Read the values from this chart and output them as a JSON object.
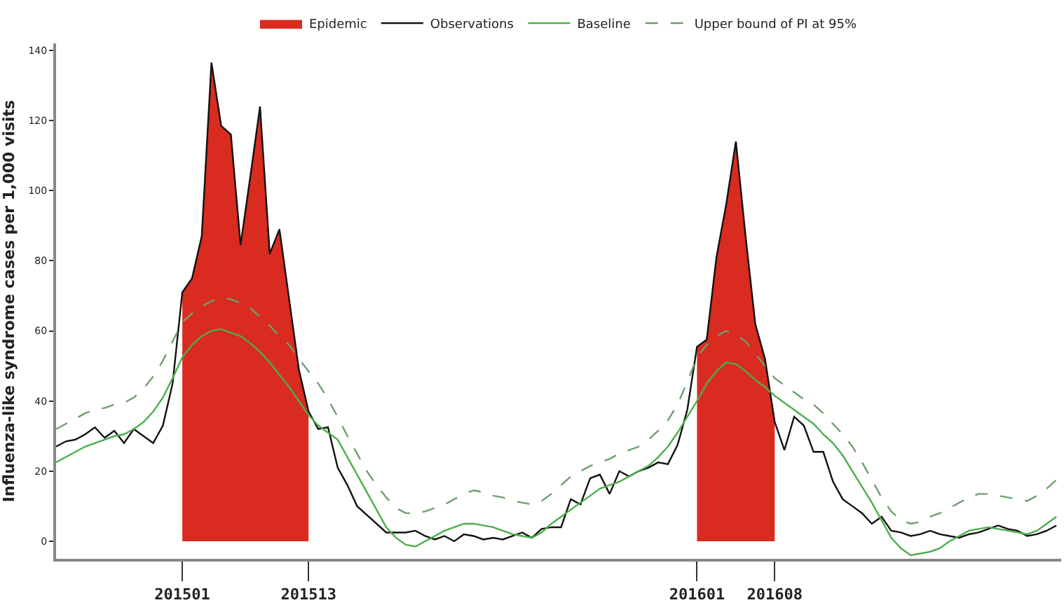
{
  "chart_data": {
    "type": "line",
    "ylabel": "Influenza-like syndrome cases per 1,000 visits",
    "categories": [
      null,
      null,
      null,
      null,
      null,
      null,
      null,
      null,
      null,
      null,
      null,
      null,
      null,
      "201501",
      null,
      null,
      null,
      null,
      null,
      null,
      null,
      null,
      null,
      null,
      null,
      null,
      "201513",
      null,
      null,
      null,
      null,
      null,
      null,
      null,
      null,
      null,
      null,
      null,
      null,
      null,
      null,
      null,
      null,
      null,
      null,
      null,
      null,
      null,
      null,
      null,
      null,
      null,
      null,
      null,
      null,
      null,
      null,
      null,
      null,
      null,
      null,
      null,
      null,
      null,
      null,
      null,
      "201601",
      null,
      null,
      null,
      null,
      null,
      null,
      null,
      "201608",
      null,
      null,
      null,
      null,
      null,
      null,
      null,
      null,
      null,
      null,
      null,
      null,
      null,
      null,
      null,
      null,
      null,
      null,
      null,
      null,
      null,
      null,
      null,
      null,
      null,
      null,
      null,
      null,
      null
    ],
    "ylim": [
      -5,
      142
    ],
    "yticks": [
      0,
      20,
      40,
      60,
      80,
      100,
      120,
      140
    ],
    "grid": false,
    "legend": "top",
    "marker": "none",
    "series": [
      {
        "name": "Observations",
        "color": "#111111",
        "line_style": "solid",
        "values": [
          27,
          28.5,
          29,
          30.5,
          32.5,
          29.5,
          31.5,
          28,
          32,
          30,
          28,
          33,
          45,
          71,
          75,
          87,
          136.5,
          118.5,
          116,
          84.5,
          104,
          124,
          82,
          89,
          69,
          49,
          37,
          32,
          32.5,
          21,
          16,
          10,
          7.5,
          5,
          2.5,
          2.5,
          2.5,
          3,
          1.5,
          0.5,
          1.5,
          0,
          2,
          1.5,
          0.5,
          1,
          0.5,
          1.5,
          2.5,
          1,
          3.5,
          4,
          4,
          12,
          10.5,
          18,
          19,
          13.5,
          20,
          18.5,
          20,
          21,
          22.5,
          22,
          27.5,
          37.5,
          55.5,
          57.5,
          81,
          96,
          114,
          87,
          62,
          52,
          34,
          26,
          35.5,
          33,
          25.5,
          25.5,
          17,
          12,
          10,
          8,
          5,
          7,
          3,
          2.5,
          1.5,
          2,
          3,
          2,
          1.5,
          1,
          2,
          2.5,
          3.5,
          4.5,
          3.5,
          3,
          1.5,
          2,
          3,
          4.5
        ]
      },
      {
        "name": "Baseline",
        "type": "line",
        "color": "#4cae4c",
        "line_style": "solid",
        "values": [
          22.5,
          24,
          25.5,
          27,
          28,
          29,
          30,
          30.5,
          32,
          34,
          37,
          41,
          46.5,
          52.5,
          56,
          58.5,
          60,
          60.5,
          59.5,
          58.5,
          56.5,
          54,
          51,
          47.5,
          44,
          40,
          36,
          33,
          31,
          29,
          24,
          19,
          14,
          9,
          4,
          1,
          -1,
          -1.5,
          0,
          1.5,
          3,
          4,
          5,
          5,
          4.5,
          4,
          3,
          2,
          1.5,
          1,
          2.5,
          5,
          7,
          9,
          11,
          13,
          15,
          16,
          17,
          18.5,
          20,
          21.5,
          24,
          27,
          31,
          35.5,
          40,
          45,
          48.5,
          51,
          50.5,
          48.5,
          46,
          44,
          41.5,
          39.5,
          37.5,
          35.5,
          33.5,
          30.5,
          28,
          24.5,
          20,
          15.5,
          11,
          6,
          1,
          -2,
          -4,
          -3.5,
          -3,
          -2,
          0,
          1.5,
          3,
          3.5,
          4,
          3.5,
          3,
          2.5,
          2,
          3,
          5,
          7
        ]
      },
      {
        "name": "Upper bound of PI at 95%",
        "type": "line",
        "color": "#6f9f6f",
        "line_style": "dashed",
        "values": [
          32,
          33.5,
          35,
          36.5,
          37.5,
          38,
          39,
          39.5,
          41,
          43.5,
          47,
          51.5,
          57,
          62.5,
          65,
          67,
          68.5,
          69.5,
          69,
          68,
          66.5,
          64,
          61.5,
          58.5,
          56,
          52,
          48.5,
          45,
          40.5,
          35.5,
          30,
          25,
          20,
          16,
          12.5,
          9.5,
          8,
          8,
          8.5,
          9.5,
          10.5,
          12,
          13.5,
          14.5,
          14,
          13,
          12.5,
          11.5,
          11,
          10.5,
          11.5,
          13.5,
          16,
          18.5,
          20,
          21.5,
          22.5,
          23.5,
          25,
          26,
          27,
          29,
          31.5,
          34.5,
          39,
          45.5,
          52.5,
          56,
          58.5,
          60,
          59,
          57,
          53.5,
          50,
          46.5,
          44.5,
          42.5,
          40.5,
          39,
          36.5,
          33.5,
          30.5,
          27,
          22.5,
          17.5,
          12.5,
          8.5,
          6,
          5,
          5.5,
          7,
          8,
          9.5,
          11,
          12.5,
          13.5,
          13.5,
          13,
          12.5,
          12,
          11.5,
          13,
          15,
          17.5
        ]
      },
      {
        "name": "Epidemic",
        "type": "area",
        "color": "#d92b20",
        "values": [
          null,
          null,
          null,
          null,
          null,
          null,
          null,
          null,
          null,
          null,
          null,
          null,
          null,
          71,
          75,
          87,
          136.5,
          118.5,
          116,
          84.5,
          104,
          124,
          82,
          89,
          69,
          49,
          37,
          null,
          null,
          null,
          null,
          null,
          null,
          null,
          null,
          null,
          null,
          null,
          null,
          null,
          null,
          null,
          null,
          null,
          null,
          null,
          null,
          null,
          null,
          null,
          null,
          null,
          null,
          null,
          null,
          null,
          null,
          null,
          null,
          null,
          null,
          null,
          null,
          null,
          null,
          null,
          55.5,
          57.5,
          81,
          96,
          114,
          87,
          62,
          52,
          34,
          null,
          null,
          null,
          null,
          null,
          null,
          null,
          null,
          null,
          null,
          null,
          null,
          null,
          null,
          null,
          null,
          null,
          null,
          null,
          null,
          null,
          null,
          null,
          null,
          null,
          null,
          null,
          null,
          null
        ]
      }
    ]
  }
}
